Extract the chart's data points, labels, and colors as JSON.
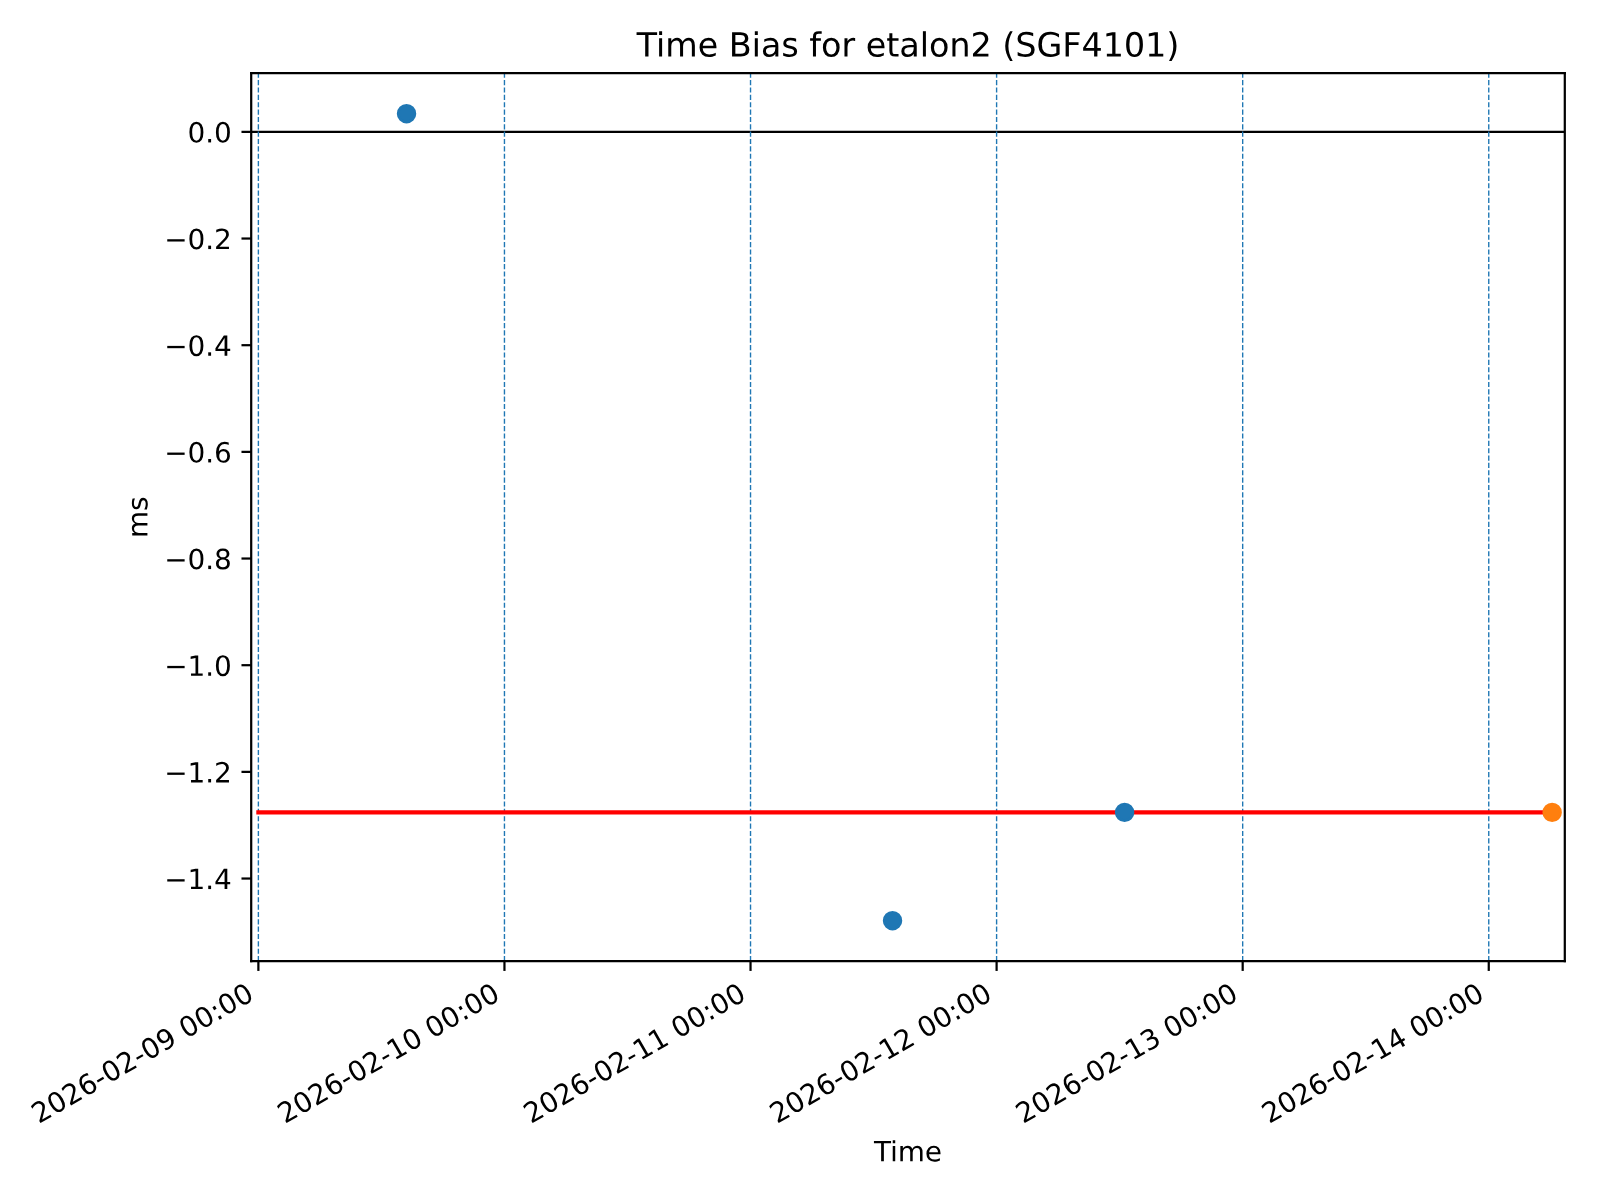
{
  "chart_data": {
    "type": "scatter",
    "title": "Time Bias for etalon2 (SGF4101)",
    "xlabel": "Time",
    "ylabel": "ms",
    "marker": "circle",
    "series": [
      {
        "color": "#1f77b4",
        "x": [
          "2026-02-09T14:27",
          "2026-02-11T13:51",
          "2026-02-12T12:29"
        ],
        "values": [
          0.034,
          -1.479,
          -1.276
        ]
      },
      {
        "color": "#ff7f0e",
        "x": [
          "2026-02-14T06:11"
        ],
        "values": [
          -1.276
        ]
      },
      {
        "type": "line",
        "color": "#ff0000",
        "marker": "none",
        "line_style": "solid",
        "x": [
          "2026-02-09T00:00",
          "2026-02-14T06:11"
        ],
        "values": [
          -1.276,
          -1.276
        ]
      }
    ],
    "xlim": [
      "2026-02-08T23:18",
      "2026-02-14T07:25"
    ],
    "ylim": [
      -1.555,
      0.11
    ],
    "xticks": [
      {
        "value": "2026-02-09",
        "label": "2026-02-09 00:00"
      },
      {
        "value": "2026-02-10",
        "label": "2026-02-10 00:00"
      },
      {
        "value": "2026-02-11",
        "label": "2026-02-11 00:00"
      },
      {
        "value": "2026-02-12",
        "label": "2026-02-12 00:00"
      },
      {
        "value": "2026-02-13",
        "label": "2026-02-13 00:00"
      },
      {
        "value": "2026-02-14",
        "label": "2026-02-14 00:00"
      }
    ],
    "yticks": [
      {
        "value": 0,
        "label": "0.0"
      },
      {
        "value": -0.2,
        "label": "−0.2"
      },
      {
        "value": -0.4,
        "label": "−0.4"
      },
      {
        "value": -0.6,
        "label": "−0.6"
      },
      {
        "value": -0.8,
        "label": "−0.8"
      },
      {
        "value": -1,
        "label": "−1.0"
      },
      {
        "value": -1.2,
        "label": "−1.2"
      },
      {
        "value": -1.4,
        "label": "−1.4"
      }
    ],
    "ref_lines": [
      {
        "axis": "y",
        "value": 0,
        "color": "#000000",
        "line_style": "solid"
      },
      {
        "axis": "x",
        "value": "2026-02-09",
        "color": "#1f77b4",
        "line_style": "dashed"
      },
      {
        "axis": "x",
        "value": "2026-02-10",
        "color": "#1f77b4",
        "line_style": "dashed"
      },
      {
        "axis": "x",
        "value": "2026-02-11",
        "color": "#1f77b4",
        "line_style": "dashed"
      },
      {
        "axis": "x",
        "value": "2026-02-12",
        "color": "#1f77b4",
        "line_style": "dashed"
      },
      {
        "axis": "x",
        "value": "2026-02-13",
        "color": "#1f77b4",
        "line_style": "dashed"
      },
      {
        "axis": "x",
        "value": "2026-02-14",
        "color": "#1f77b4",
        "line_style": "dashed"
      }
    ],
    "grid": false
  }
}
